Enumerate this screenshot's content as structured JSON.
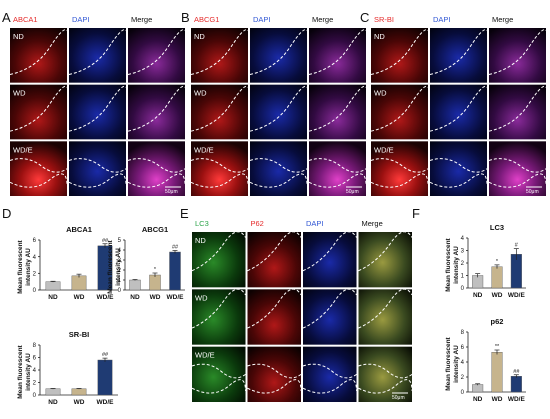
{
  "panels": [
    "A",
    "B",
    "C",
    "D",
    "E",
    "F"
  ],
  "groups": [
    "ND",
    "WD",
    "WD/E"
  ],
  "scale_bar": "50μm",
  "colors": {
    "nd_bar": "#bfbfbf",
    "wd_bar": "#c6b48d",
    "wde_bar": "#1f3b73",
    "dapi_title": "#2f55d4",
    "red_title": "#e52b2b",
    "lc3_title": "#2ca44a"
  },
  "micro_panels": [
    {
      "letter": "A",
      "channels": [
        "ABCA1",
        "DAPI",
        "Merge"
      ],
      "hue": "red"
    },
    {
      "letter": "B",
      "channels": [
        "ABCG1",
        "DAPI",
        "Merge"
      ],
      "hue": "red"
    },
    {
      "letter": "C",
      "channels": [
        "SR-BI",
        "DAPI",
        "Merge"
      ],
      "hue": "red"
    },
    {
      "letter": "E",
      "channels": [
        "LC3",
        "P62",
        "DAPI",
        "Merge"
      ],
      "hue": "mixed"
    }
  ],
  "chart_data": [
    {
      "type": "bar",
      "panel": "D",
      "title": "ABCA1",
      "ylabel": "Mean fluorescent intensity AU",
      "categories": [
        "ND",
        "WD",
        "WD/E"
      ],
      "values": [
        1.0,
        1.7,
        5.3
      ],
      "errors": [
        0.05,
        0.2,
        0.25
      ],
      "ylim": [
        0,
        6
      ],
      "yticks": [
        0,
        2,
        4,
        6
      ],
      "annotations": [
        "",
        "",
        "##"
      ]
    },
    {
      "type": "bar",
      "panel": "D",
      "title": "ABCG1",
      "ylabel": "Mean fluorescent intensity AU",
      "categories": [
        "ND",
        "WD",
        "WD/E"
      ],
      "values": [
        1.0,
        1.5,
        3.8
      ],
      "errors": [
        0.05,
        0.2,
        0.15
      ],
      "ylim": [
        0,
        5
      ],
      "yticks": [
        0,
        1,
        2,
        3,
        4,
        5
      ],
      "annotations": [
        "",
        "*",
        "##"
      ]
    },
    {
      "type": "bar",
      "panel": "D",
      "title": "SR-BI",
      "ylabel": "Mean fluorescent intensity AU",
      "categories": [
        "ND",
        "WD",
        "WD/E"
      ],
      "values": [
        1.0,
        1.0,
        5.6
      ],
      "errors": [
        0.05,
        0.05,
        0.3
      ],
      "ylim": [
        0,
        8
      ],
      "yticks": [
        0,
        2,
        4,
        6,
        8
      ],
      "annotations": [
        "",
        "",
        "##"
      ]
    },
    {
      "type": "bar",
      "panel": "F",
      "title": "LC3",
      "ylabel": "Mean fluorescent intensity AU",
      "categories": [
        "ND",
        "WD",
        "WD/E"
      ],
      "values": [
        1.0,
        1.7,
        2.7
      ],
      "errors": [
        0.15,
        0.15,
        0.45
      ],
      "ylim": [
        0,
        4
      ],
      "yticks": [
        0,
        1,
        2,
        3,
        4
      ],
      "annotations": [
        "",
        "*",
        "#"
      ]
    },
    {
      "type": "bar",
      "panel": "F",
      "title": "p62",
      "ylabel": "Mean fluorescent intensity AU",
      "categories": [
        "ND",
        "WD",
        "WD/E"
      ],
      "values": [
        1.0,
        5.3,
        2.1
      ],
      "errors": [
        0.1,
        0.3,
        0.2
      ],
      "ylim": [
        0,
        8
      ],
      "yticks": [
        0,
        2,
        4,
        6,
        8
      ],
      "annotations": [
        "",
        "**",
        "##"
      ]
    }
  ]
}
